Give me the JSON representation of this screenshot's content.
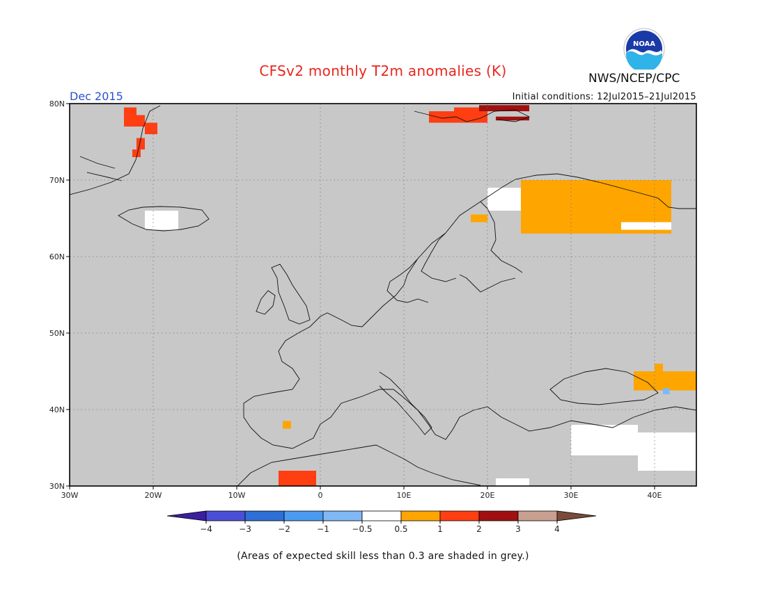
{
  "title": "CFSv2 monthly T2m anomalies (K)",
  "month": "Dec 2015",
  "agency": "NWS/NCEP/CPC",
  "logo_text": "NOAA",
  "initial_conditions": "Initial conditions: 12Jul2015–21Jul2015",
  "footnote": "(Areas of expected skill less than 0.3 are shaded in grey.)",
  "map": {
    "lon_range": [
      -30,
      45
    ],
    "lat_range": [
      30,
      80
    ],
    "lon_ticks": [
      "30W",
      "20W",
      "10W",
      "0",
      "10E",
      "20E",
      "30E",
      "40E"
    ],
    "lat_ticks": [
      "80N",
      "70N",
      "60N",
      "50N",
      "40N",
      "30N"
    ],
    "grid_lines": true,
    "background_color": "#c8c8c8"
  },
  "colorbar": {
    "labels": [
      "−4",
      "−3",
      "−2",
      "−1",
      "−0.5",
      "0.5",
      "1",
      "2",
      "3",
      "4"
    ],
    "colors": [
      "#3a1fa0",
      "#4b4fd8",
      "#2f6fd6",
      "#4a9af0",
      "#7fb8f5",
      "#ffffff",
      "#ffa500",
      "#ff3e12",
      "#a01010",
      "#c8a090",
      "#7a4a3a"
    ]
  },
  "anomaly_regions": [
    {
      "level": "1 to 2",
      "color": "#ff3e12",
      "area": "eastern Greenland",
      "cells": [
        [
          -23.5,
          78.5,
          -22,
          79.5
        ],
        [
          -23.5,
          77,
          -21,
          78.5
        ],
        [
          -21,
          76,
          -19.5,
          77.5
        ],
        [
          -22,
          74,
          -21,
          75.5
        ],
        [
          -22.5,
          73,
          -21.5,
          74
        ]
      ]
    },
    {
      "level": "1 to 2",
      "color": "#ff3e12",
      "area": "Svalbard",
      "cells": [
        [
          13,
          77.5,
          20,
          79
        ],
        [
          16,
          78.5,
          19,
          79.5
        ]
      ]
    },
    {
      "level": "2 to 3",
      "color": "#a01010",
      "area": "Svalbard east",
      "cells": [
        [
          19,
          79,
          25,
          79.8
        ],
        [
          21,
          77.8,
          25,
          78.3
        ]
      ]
    },
    {
      "level": "0.5 to 1",
      "color": "#ffa500",
      "area": "northern Scandinavia and Kola",
      "cells": [
        [
          24,
          63,
          42,
          70
        ],
        [
          30,
          64,
          36,
          68
        ],
        [
          18,
          64.5,
          20,
          65.5
        ],
        [
          28,
          64,
          33,
          63.5
        ]
      ]
    },
    {
      "level": "0.5 to 1",
      "color": "#ffa500",
      "area": "Caucasus",
      "cells": [
        [
          37.5,
          42.5,
          45,
          45
        ],
        [
          40,
          45,
          41,
          46
        ]
      ]
    },
    {
      "level": "0.5 to 1",
      "color": "#ffa500",
      "area": "Spain",
      "cells": [
        [
          -4.5,
          38.5,
          -3.5,
          37.5
        ]
      ]
    },
    {
      "level": "1 to 2",
      "color": "#ff3e12",
      "area": "North Africa",
      "cells": [
        [
          -5,
          30,
          -0.5,
          32
        ]
      ]
    },
    {
      "level": "-0.5 to 0.5",
      "color": "#ffffff",
      "area": "Iceland, Kola, Turkey, Middle East",
      "cells": [
        [
          -21,
          63.5,
          -17,
          66
        ],
        [
          20,
          66,
          24,
          69
        ],
        [
          36,
          63.5,
          42,
          64.5
        ],
        [
          30,
          34,
          38,
          38
        ],
        [
          38,
          32,
          45,
          37
        ],
        [
          21,
          30,
          25,
          31
        ]
      ]
    },
    {
      "level": "-1 to -0.5",
      "color": "#7fb8f5",
      "area": "Caucasus",
      "cells": [
        [
          41,
          42,
          41.8,
          42.8
        ]
      ]
    }
  ]
}
